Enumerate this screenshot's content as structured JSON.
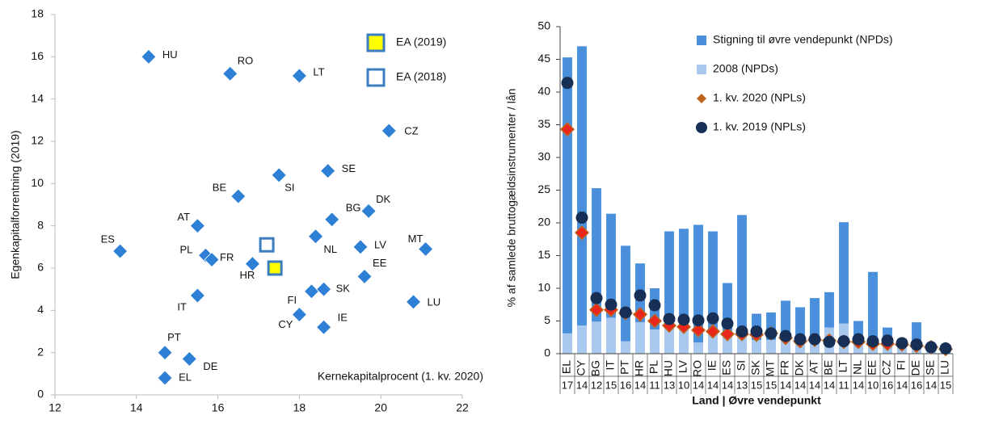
{
  "chart_data": [
    {
      "type": "scatter",
      "ylabel": "Egenkapitalforrentning (2019)",
      "xlabel": "Kernekapitalprocent (1. kv. 2020)",
      "xlim": [
        12,
        22
      ],
      "xticks": [
        12,
        14,
        16,
        18,
        20,
        22
      ],
      "ylim": [
        0,
        18
      ],
      "yticks": [
        0,
        2,
        4,
        6,
        8,
        10,
        12,
        14,
        16,
        18
      ],
      "color": "#2e7fd6",
      "labels": [
        "HU",
        "RO",
        "LT",
        "CZ",
        "SE",
        "SI",
        "BE",
        "BG",
        "DK",
        "AT",
        "NL",
        "LV",
        "MT",
        "ES",
        "PL",
        "FR",
        "HR",
        "EE",
        "FI",
        "SK",
        "IT",
        "LU",
        "CY",
        "IE",
        "PT",
        "DE",
        "EL"
      ],
      "x": [
        14.3,
        16.3,
        18.0,
        20.2,
        18.7,
        17.5,
        16.5,
        18.8,
        19.7,
        15.5,
        18.4,
        19.5,
        21.1,
        13.6,
        15.7,
        15.85,
        16.85,
        19.6,
        18.3,
        18.6,
        15.5,
        20.8,
        18.0,
        18.6,
        14.7,
        15.3,
        14.7
      ],
      "y": [
        16.0,
        15.2,
        15.1,
        12.5,
        10.6,
        10.4,
        9.4,
        8.3,
        8.7,
        8.0,
        7.5,
        7.0,
        6.9,
        6.8,
        6.6,
        6.4,
        6.2,
        5.6,
        4.9,
        5.0,
        4.7,
        4.4,
        3.8,
        3.2,
        2.0,
        1.7,
        0.8
      ],
      "legend": "upper right",
      "series": [
        {
          "name": "EA (2019)",
          "color": "#ffff00",
          "edge": "#3a7dc0",
          "x": [
            17.4
          ],
          "y": [
            6.0
          ]
        },
        {
          "name": "EA (2018)",
          "color": "#ffffff",
          "edge": "#3a7dc0",
          "x": [
            17.2
          ],
          "y": [
            7.1
          ]
        }
      ]
    },
    {
      "type": "bar",
      "stacked": true,
      "ylabel": "% af samlede bruttogældsinstrumenter / lån",
      "xlabel": "Land | Øvre vendepunkt",
      "ylim": [
        0,
        50
      ],
      "yticks": [
        0,
        5,
        10,
        15,
        20,
        25,
        30,
        35,
        40,
        45,
        50
      ],
      "legend": "upper right",
      "categories": [
        "EL",
        "CY",
        "BG",
        "IT",
        "PT",
        "HR",
        "PL",
        "HU",
        "LV",
        "RO",
        "IE",
        "ES",
        "SI",
        "SK",
        "MT",
        "FR",
        "DK",
        "AT",
        "BE",
        "LT",
        "NL",
        "EE",
        "CZ",
        "FI",
        "DE",
        "SE",
        "LU"
      ],
      "categories2": [
        "17",
        "14",
        "12",
        "15",
        "16",
        "14",
        "11",
        "13",
        "10",
        "14",
        "14",
        "14",
        "13",
        "15",
        "15",
        "14",
        "14",
        "14",
        "14",
        "11",
        "14",
        "10",
        "16",
        "14",
        "16",
        "14",
        "15"
      ],
      "series": [
        {
          "name": "Stigning til øvre vendepunkt (NPDs)",
          "kind": "bar",
          "color": "#4a8fdb",
          "order": 2,
          "values": [
            42.2,
            42.7,
            20.4,
            15.9,
            14.6,
            9.0,
            6.3,
            13.9,
            15.2,
            18.0,
            15.3,
            7.7,
            17.6,
            4.0,
            4.2,
            5.3,
            5.6,
            6.6,
            5.4,
            15.5,
            3.5,
            11.0,
            2.3,
            0.8,
            3.0,
            0.5,
            0.4
          ]
        },
        {
          "name": "2008 (NPDs)",
          "kind": "bar",
          "color": "#a9c8ee",
          "order": 1,
          "values": [
            3.1,
            4.3,
            4.9,
            5.5,
            1.9,
            4.8,
            3.7,
            4.8,
            3.9,
            1.7,
            3.4,
            3.1,
            3.6,
            2.1,
            2.1,
            2.8,
            1.5,
            1.9,
            4.0,
            4.6,
            1.5,
            1.5,
            1.7,
            1.5,
            1.8,
            0.5,
            0.6
          ]
        },
        {
          "name": "1. kv. 2020 (NPLs)",
          "kind": "diamond",
          "color": "#e8261c",
          "edge": "#c0651e",
          "values": [
            34.3,
            18.5,
            6.7,
            6.7,
            6.2,
            6.0,
            5.0,
            4.3,
            4.1,
            3.6,
            3.4,
            3.0,
            3.0,
            2.9,
            3.1,
            2.4,
            1.9,
            2.1,
            2.0,
            1.8,
            1.8,
            1.5,
            1.5,
            1.4,
            1.2,
            1.0,
            0.7
          ]
        },
        {
          "name": "1. kv. 2019 (NPLs)",
          "kind": "circle",
          "color": "#172f55",
          "values": [
            41.4,
            20.8,
            8.5,
            7.5,
            6.3,
            8.9,
            7.4,
            5.3,
            5.2,
            5.1,
            5.4,
            4.6,
            3.4,
            3.4,
            3.1,
            2.7,
            2.2,
            2.2,
            1.8,
            1.9,
            2.2,
            1.9,
            2.0,
            1.6,
            1.4,
            1.0,
            0.8
          ]
        }
      ]
    }
  ]
}
